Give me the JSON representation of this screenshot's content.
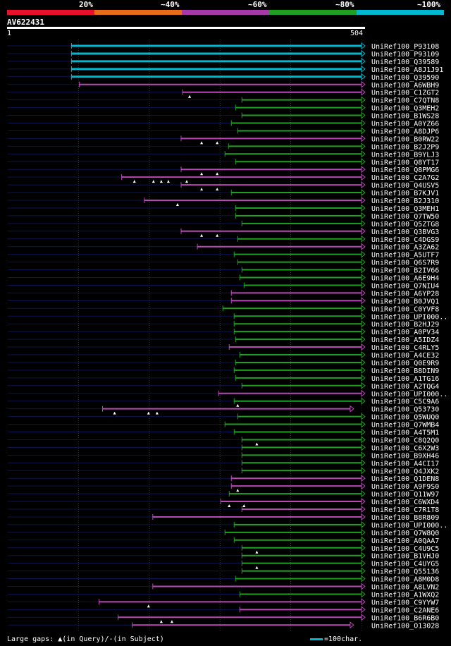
{
  "header": {
    "scale_labels": [
      "20%",
      "~40%",
      "~60%",
      "~80%",
      "~100%"
    ],
    "scale_colors": [
      "#e8102a",
      "#e86d18",
      "#a63aa8",
      "#20a020",
      "#00b8d0"
    ],
    "query_id": "AV622431",
    "ruler_start": "1",
    "ruler_end": "504"
  },
  "colors": {
    "cyan": "#00b8d0",
    "magenta": "#b848b8",
    "green": "#20a020",
    "navy": "#0a1450"
  },
  "chart_data": {
    "type": "alignment-overview",
    "query_length": 504,
    "hits": [
      {
        "acc": "UniRef100_P93108",
        "start": 90,
        "color": "cyan"
      },
      {
        "acc": "UniRef100_P93109",
        "start": 90,
        "color": "cyan"
      },
      {
        "acc": "UniRef100_Q39589",
        "start": 90,
        "color": "cyan"
      },
      {
        "acc": "UniRef100_A8J1J91",
        "start": 90,
        "color": "cyan"
      },
      {
        "acc": "UniRef100_Q39590",
        "start": 90,
        "color": "cyan"
      },
      {
        "acc": "UniRef100_A6WBH9",
        "start": 101,
        "color": "magenta"
      },
      {
        "acc": "UniRef100_C1ZGT2",
        "start": 247,
        "color": "magenta",
        "marks": [
          257
        ]
      },
      {
        "acc": "UniRef100_C7QTN8",
        "start": 331,
        "color": "green"
      },
      {
        "acc": "UniRef100_Q3MEH2",
        "start": 322,
        "color": "green"
      },
      {
        "acc": "UniRef100_B1WS28",
        "start": 331,
        "color": "green"
      },
      {
        "acc": "UniRef100_A0YZ66",
        "start": 316,
        "color": "green"
      },
      {
        "acc": "UniRef100_A8DJP6",
        "start": 325,
        "color": "green"
      },
      {
        "acc": "UniRef100_B0RW22",
        "start": 245,
        "color": "magenta",
        "marks": [
          274,
          296
        ]
      },
      {
        "acc": "UniRef100_B2J2P9",
        "start": 312,
        "color": "green"
      },
      {
        "acc": "UniRef100_B9YLJ3",
        "start": 307,
        "color": "green"
      },
      {
        "acc": "UniRef100_Q8YT17",
        "start": 322,
        "color": "green"
      },
      {
        "acc": "UniRef100_Q8PMG6",
        "start": 245,
        "color": "magenta",
        "marks": [
          274,
          296
        ]
      },
      {
        "acc": "UniRef100_C2A7G2",
        "start": 161,
        "color": "magenta",
        "marks": [
          179,
          206,
          217,
          227,
          253
        ]
      },
      {
        "acc": "UniRef100_Q4USV5",
        "start": 245,
        "color": "magenta",
        "marks": [
          274,
          296
        ]
      },
      {
        "acc": "UniRef100_B7KJV1",
        "start": 316,
        "color": "green"
      },
      {
        "acc": "UniRef100_B2J310",
        "start": 193,
        "color": "magenta",
        "marks": [
          240
        ]
      },
      {
        "acc": "UniRef100_Q3MEH1",
        "start": 322,
        "color": "green"
      },
      {
        "acc": "UniRef100_Q7TW50",
        "start": 322,
        "color": "green"
      },
      {
        "acc": "UniRef100_Q5ZTG8",
        "start": 331,
        "color": "green"
      },
      {
        "acc": "UniRef100_Q3BVG3",
        "start": 245,
        "color": "magenta",
        "marks": [
          274,
          296
        ]
      },
      {
        "acc": "UniRef100_C4DGS9",
        "start": 325,
        "color": "green"
      },
      {
        "acc": "UniRef100_A3ZA62",
        "start": 268,
        "color": "magenta"
      },
      {
        "acc": "UniRef100_A5UTF7",
        "start": 320,
        "color": "green"
      },
      {
        "acc": "UniRef100_Q6S7R9",
        "start": 325,
        "color": "green"
      },
      {
        "acc": "UniRef100_B2IV66",
        "start": 331,
        "color": "green"
      },
      {
        "acc": "UniRef100_A6E9H4",
        "start": 328,
        "color": "green"
      },
      {
        "acc": "UniRef100_Q7NIU4",
        "start": 334,
        "color": "green"
      },
      {
        "acc": "UniRef100_A6YP28",
        "start": 316,
        "color": "magenta"
      },
      {
        "acc": "UniRef100_B0JVQ1",
        "start": 316,
        "color": "magenta"
      },
      {
        "acc": "UniRef100_C0YVF8",
        "start": 304,
        "color": "green"
      },
      {
        "acc": "UniRef100_UPI000..",
        "start": 320,
        "color": "green"
      },
      {
        "acc": "UniRef100_B2HJ29",
        "start": 320,
        "color": "green"
      },
      {
        "acc": "UniRef100_A0PV34",
        "start": 320,
        "color": "green"
      },
      {
        "acc": "UniRef100_A5IDZ4",
        "start": 322,
        "color": "green"
      },
      {
        "acc": "UniRef100_C4RLY5",
        "start": 313,
        "color": "magenta"
      },
      {
        "acc": "UniRef100_A4CE32",
        "start": 328,
        "color": "green"
      },
      {
        "acc": "UniRef100_Q0E9R9",
        "start": 322,
        "color": "green"
      },
      {
        "acc": "UniRef100_B8DIN9",
        "start": 320,
        "color": "green"
      },
      {
        "acc": "UniRef100_A1TG16",
        "start": 322,
        "color": "green"
      },
      {
        "acc": "UniRef100_A2TQG4",
        "start": 331,
        "color": "green"
      },
      {
        "acc": "UniRef100_UPI000..",
        "start": 298,
        "color": "magenta"
      },
      {
        "acc": "UniRef100_C5C9A6",
        "start": 320,
        "color": "green",
        "marks": [
          325
        ]
      },
      {
        "acc": "UniRef100_Q53730",
        "start": 134,
        "color": "magenta",
        "end": 488,
        "marks": [
          151,
          199,
          211
        ]
      },
      {
        "acc": "UniRef100_Q5WUQ0",
        "start": 325,
        "color": "green"
      },
      {
        "acc": "UniRef100_Q7WMB4",
        "start": 307,
        "color": "green"
      },
      {
        "acc": "UniRef100_A4T5M1",
        "start": 320,
        "color": "green"
      },
      {
        "acc": "UniRef100_C8Q2Q0",
        "start": 331,
        "color": "green",
        "marks": [
          352
        ]
      },
      {
        "acc": "UniRef100_C6X2W3",
        "start": 331,
        "color": "green"
      },
      {
        "acc": "UniRef100_B9XH46",
        "start": 331,
        "color": "green"
      },
      {
        "acc": "UniRef100_A4CI17",
        "start": 331,
        "color": "green"
      },
      {
        "acc": "UniRef100_Q4JXK2",
        "start": 331,
        "color": "green"
      },
      {
        "acc": "UniRef100_Q1DEN8",
        "start": 316,
        "color": "magenta"
      },
      {
        "acc": "UniRef100_A9F9S0",
        "start": 316,
        "color": "magenta",
        "marks": [
          325
        ]
      },
      {
        "acc": "UniRef100_Q11W97",
        "start": 313,
        "color": "green"
      },
      {
        "acc": "UniRef100_C6WXD4",
        "start": 301,
        "color": "magenta",
        "marks": [
          313,
          334
        ]
      },
      {
        "acc": "UniRef100_C7R1T8",
        "start": 331,
        "color": "magenta"
      },
      {
        "acc": "UniRef100_B8R809",
        "start": 205,
        "color": "magenta"
      },
      {
        "acc": "UniRef100_UPI000..",
        "start": 320,
        "color": "green"
      },
      {
        "acc": "UniRef100_Q7W8Q0",
        "start": 307,
        "color": "green"
      },
      {
        "acc": "UniRef100_A0QAA7",
        "start": 320,
        "color": "green"
      },
      {
        "acc": "UniRef100_C4U9C5",
        "start": 331,
        "color": "green",
        "marks": [
          352
        ]
      },
      {
        "acc": "UniRef100_B1VHJ0",
        "start": 331,
        "color": "green"
      },
      {
        "acc": "UniRef100_C4UYG5",
        "start": 331,
        "color": "green",
        "marks": [
          352
        ]
      },
      {
        "acc": "UniRef100_Q55136",
        "start": 331,
        "color": "green"
      },
      {
        "acc": "UniRef100_A8M0D8",
        "start": 322,
        "color": "green"
      },
      {
        "acc": "UniRef100_A8LVN2",
        "start": 205,
        "color": "magenta"
      },
      {
        "acc": "UniRef100_A1WXQ2",
        "start": 328,
        "color": "green"
      },
      {
        "acc": "UniRef100_C9YYW7",
        "start": 129,
        "color": "magenta",
        "marks": [
          199
        ]
      },
      {
        "acc": "UniRef100_C2ANE6",
        "start": 328,
        "color": "magenta"
      },
      {
        "acc": "UniRef100_B6R6B0",
        "start": 156,
        "color": "magenta",
        "marks": [
          217,
          232
        ]
      },
      {
        "acc": "UniRef100_O13028",
        "start": 176,
        "color": "magenta",
        "end": 488
      }
    ]
  },
  "footer": {
    "gaps_prefix": "Large gaps: ",
    "gaps_query": "(in Query)/",
    "gaps_subject": "(in Subject)",
    "scale_text": "=100char."
  }
}
